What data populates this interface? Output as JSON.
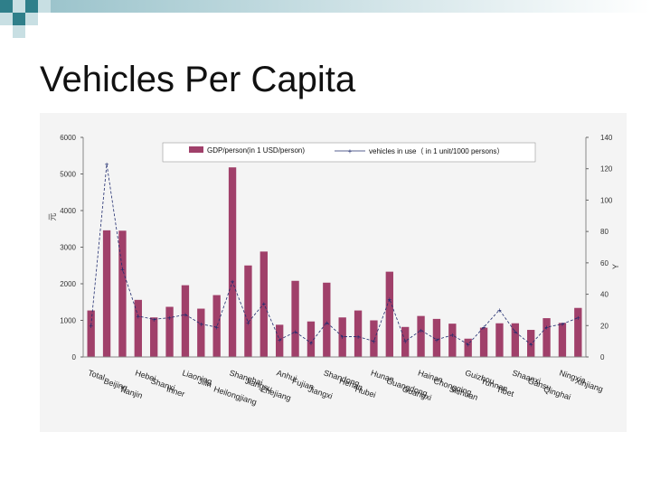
{
  "slide": {
    "title": "Vehicles Per Capita"
  },
  "colors": {
    "bar": "#a0406a",
    "line": "#1f2b6e",
    "panel": "#f4f4f4",
    "deco_dark": "#2f7f8a",
    "deco_light": "#c8dfe3"
  },
  "chart_data": {
    "type": "bar",
    "categories": [
      "Total",
      "Beijing",
      "Tianjin",
      "Hebei",
      "Shanxi",
      "Inner Mongolia",
      "Liaoning",
      "Jilin",
      "Heilongjiang",
      "Shanghai",
      "Jiangsu",
      "Zhejiang",
      "Anhui",
      "Fujian",
      "Jiangxi",
      "Shandong",
      "Henan",
      "Hubei",
      "Hunan",
      "Guangdong",
      "Guangxi",
      "Hainan",
      "Chongqing",
      "Sichuan",
      "Guizhou",
      "Yunnan",
      "Tibet",
      "Shaanxi",
      "Gansu",
      "Qinghai",
      "Ningxia",
      "Xinjiang"
    ],
    "category_labels_visible": [
      "Total",
      "Beijing",
      "Tianjin",
      "Hebei",
      "Shanxi",
      "Inner",
      "Liaoning",
      "Jilin",
      "Heilongjiang",
      "Shanghai",
      "Jiangsu",
      "Zhejiang",
      "Anhui",
      "Fujian",
      "Jiangxi",
      "Shandong",
      "Henan",
      "Hubei",
      "Hunan",
      "Guangdong",
      "Guangxi",
      "Hainan",
      "Chongqing",
      "Sichuan",
      "Guizhou",
      "Yunnan",
      "Tibet",
      "Shaanxi",
      "Gansu",
      "Qinghai",
      "Ningxia",
      "Xinjiang"
    ],
    "series": [
      {
        "name": "GDP/person(in 1 USD/person)",
        "axis": "left",
        "kind": "bar",
        "values": [
          1270,
          3460,
          3450,
          1560,
          1080,
          1370,
          1960,
          1320,
          1690,
          5180,
          2500,
          2880,
          880,
          2080,
          970,
          2030,
          1080,
          1270,
          1000,
          2330,
          820,
          1120,
          1040,
          910,
          500,
          800,
          920,
          920,
          740,
          1060,
          930,
          1340
        ]
      },
      {
        "name": "vehicles in use（ in 1 unit/1000 persons）",
        "axis": "right",
        "kind": "line",
        "values": [
          20,
          123,
          56,
          26,
          24,
          25,
          27,
          21,
          19,
          48,
          22,
          34,
          11,
          16,
          9,
          22,
          13,
          13,
          10,
          37,
          10,
          17,
          11,
          14,
          8,
          19,
          30,
          16,
          8,
          19,
          21,
          25
        ]
      }
    ],
    "left_axis": {
      "label": "元",
      "ticks": [
        0,
        1000,
        2000,
        3000,
        4000,
        5000,
        6000
      ],
      "range": [
        0,
        6000
      ]
    },
    "right_axis": {
      "label": "Y",
      "ticks": [
        0,
        20,
        40,
        60,
        80,
        100,
        120,
        140
      ],
      "range": [
        0,
        140
      ]
    },
    "legend_position": "top",
    "grid": false
  }
}
